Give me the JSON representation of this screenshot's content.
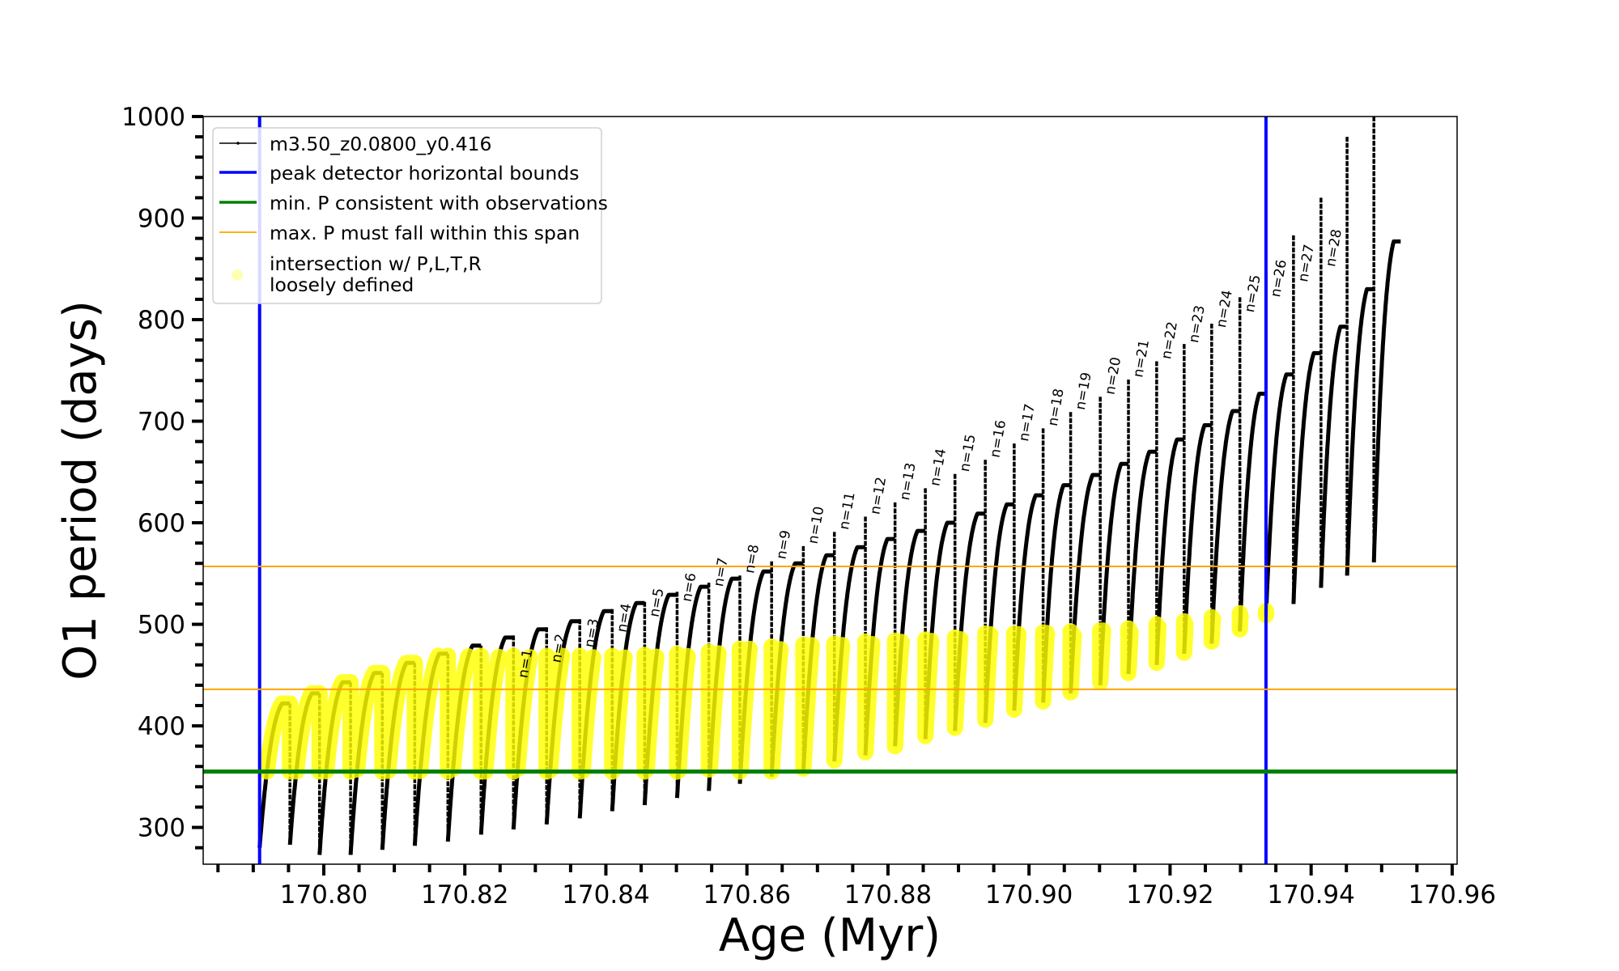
{
  "chart_data": {
    "type": "line",
    "title": "",
    "xlabel": "Age (Myr)",
    "ylabel": "O1 period (days)",
    "xlim": [
      170.7829,
      170.9607
    ],
    "ylim": [
      263.8,
      1000
    ],
    "xtick_values": [
      170.8,
      170.82,
      170.84,
      170.86,
      170.88,
      170.9,
      170.92,
      170.94,
      170.96
    ],
    "xtick_labels": [
      "170.80",
      "170.82",
      "170.84",
      "170.86",
      "170.88",
      "170.90",
      "170.92",
      "170.94",
      "170.96"
    ],
    "minor_xtick_step": 0.005,
    "ytick_values": [
      300,
      400,
      500,
      600,
      700,
      800,
      900,
      1000
    ],
    "ytick_labels": [
      "300",
      "400",
      "500",
      "600",
      "700",
      "800",
      "900",
      "1000"
    ],
    "minor_ytick_step": 20,
    "grid": false,
    "legend_placement": "upper-left",
    "series": [
      {
        "name": "m3.50_z0.0800_y0.416",
        "color": "#000000",
        "start_age": 170.7909,
        "cycle_end_age": [
          170.7952,
          170.7994,
          170.8038,
          170.8083,
          170.8129,
          170.8176,
          170.8223,
          170.8269,
          170.8316,
          170.8363,
          170.8409,
          170.8455,
          170.8501,
          170.8546,
          170.859,
          170.8635,
          170.868,
          170.8724,
          170.8768,
          170.881,
          170.8853,
          170.8895,
          170.8938,
          170.8979,
          170.902,
          170.9059,
          170.9101,
          170.9141,
          170.9181,
          170.922,
          170.9259,
          170.9299,
          170.9336,
          170.9375,
          170.9414,
          170.9451,
          170.9489,
          170.9527
        ],
        "cycle_min": [
          280,
          283,
          273,
          273,
          278,
          282,
          286,
          293,
          298,
          303,
          309,
          316,
          322,
          329,
          336,
          343,
          350,
          355,
          365,
          371,
          380,
          387,
          395,
          403,
          415,
          423,
          432,
          440,
          451,
          460,
          471,
          481,
          493,
          509,
          520,
          536,
          548,
          561
        ],
        "cycle_peak": [
          422,
          432,
          443,
          452,
          462,
          471,
          479,
          487,
          495,
          503,
          513,
          521,
          529,
          537,
          545,
          552,
          560,
          568,
          576,
          584,
          592,
          600,
          609,
          618,
          627,
          637,
          647,
          658,
          670,
          682,
          696,
          710,
          727,
          746,
          767,
          793,
          830,
          877
        ],
        "drop_spike": [
          null,
          null,
          null,
          null,
          null,
          null,
          null,
          489,
          497,
          505,
          515,
          522,
          532,
          541,
          548,
          562,
          577,
          591,
          606,
          620,
          634,
          648,
          662,
          678,
          693,
          709,
          724,
          741,
          759,
          776,
          796,
          822,
          844,
          883,
          920,
          980,
          1000
        ],
        "drop_label": [
          null,
          null,
          null,
          null,
          null,
          null,
          null,
          "n=1",
          "n=2",
          "n=3",
          "n=4",
          "n=5",
          "n=6",
          "n=7",
          "n=8",
          "n=9",
          "n=10",
          "n=11",
          "n=12",
          "n=13",
          "n=14",
          "n=15",
          "n=16",
          "n=17",
          "n=18",
          "n=19",
          "n=20",
          "n=21",
          "n=22",
          "n=23",
          "n=24",
          "n=25",
          "n=26",
          "n=27",
          "n=28",
          null,
          null
        ]
      }
    ],
    "reference_lines": [
      {
        "label": "peak detector horizontal bounds",
        "orientation": "vertical",
        "values": [
          170.7909,
          170.9336
        ],
        "color": "#0000ff"
      },
      {
        "label": "min. P consistent with observations",
        "orientation": "horizontal",
        "values": [
          355
        ],
        "color": "#008000"
      },
      {
        "label": "max. P must fall within this span",
        "orientation": "horizontal",
        "values": [
          436,
          557
        ],
        "color": "#ffa500"
      }
    ],
    "highlight": {
      "label_lines": [
        "intersection w/ P,L,T,R",
        "loosely defined"
      ],
      "color": "#ffff00",
      "cycle_ranges": [
        [
          355,
          469
        ],
        [
          355,
          469
        ],
        [
          355,
          469
        ],
        [
          355,
          469
        ],
        [
          355,
          469
        ],
        [
          355,
          469
        ],
        [
          355,
          469
        ],
        [
          355,
          469
        ],
        [
          355,
          469
        ],
        [
          355,
          469
        ],
        [
          355,
          469
        ],
        [
          355,
          469
        ],
        [
          355,
          470
        ],
        [
          355,
          471
        ],
        [
          357,
          473
        ],
        [
          355,
          476
        ],
        [
          355,
          478
        ],
        [
          358,
          480
        ],
        [
          366,
          481
        ],
        [
          374,
          483
        ],
        [
          380,
          484
        ],
        [
          390,
          485
        ],
        [
          398,
          487
        ],
        [
          406,
          491
        ],
        [
          416,
          491
        ],
        [
          424,
          492
        ],
        [
          433,
          493
        ],
        [
          443,
          494
        ],
        [
          452,
          496
        ],
        [
          462,
          500
        ],
        [
          472,
          503
        ],
        [
          483,
          507
        ],
        [
          495,
          511
        ],
        [
          505,
          513
        ]
      ]
    }
  }
}
